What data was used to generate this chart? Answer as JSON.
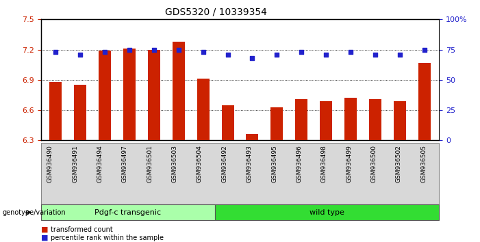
{
  "title": "GDS5320 / 10339354",
  "categories": [
    "GSM936490",
    "GSM936491",
    "GSM936494",
    "GSM936497",
    "GSM936501",
    "GSM936503",
    "GSM936504",
    "GSM936492",
    "GSM936493",
    "GSM936495",
    "GSM936496",
    "GSM936498",
    "GSM936499",
    "GSM936500",
    "GSM936502",
    "GSM936505"
  ],
  "bar_values": [
    6.88,
    6.85,
    7.19,
    7.21,
    7.2,
    7.28,
    6.91,
    6.65,
    6.36,
    6.63,
    6.71,
    6.69,
    6.72,
    6.71,
    6.69,
    7.07
  ],
  "scatter_values": [
    73,
    71,
    73,
    75,
    75,
    75,
    73,
    71,
    68,
    71,
    73,
    71,
    73,
    71,
    71,
    75
  ],
  "ylim_left": [
    6.3,
    7.5
  ],
  "ylim_right": [
    0,
    100
  ],
  "yticks_left": [
    6.3,
    6.6,
    6.9,
    7.2,
    7.5
  ],
  "yticks_right": [
    0,
    25,
    50,
    75,
    100
  ],
  "ytick_labels_right": [
    "0",
    "25",
    "50",
    "75",
    "100%"
  ],
  "bar_color": "#cc2200",
  "scatter_color": "#2222cc",
  "group1_label": "Pdgf-c transgenic",
  "group2_label": "wild type",
  "group1_n": 7,
  "group2_n": 9,
  "group1_color": "#aaffaa",
  "group2_color": "#33dd33",
  "genotype_label": "genotype/variation",
  "legend_bar_label": "transformed count",
  "legend_scatter_label": "percentile rank within the sample",
  "left_tick_color": "#cc2200",
  "right_tick_color": "#2222cc",
  "bg_xtick_color": "#d8d8d8",
  "grid_color": "#000000",
  "bar_width": 0.5
}
